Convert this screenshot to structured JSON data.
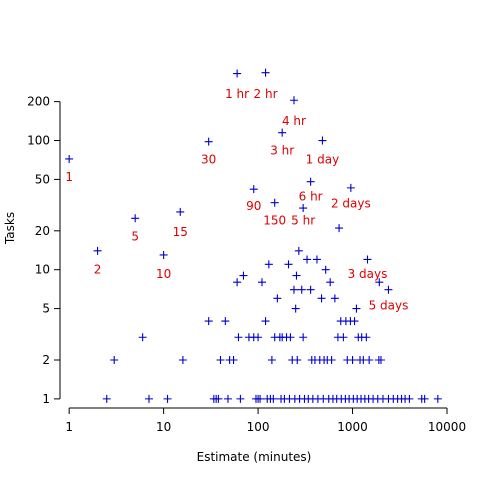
{
  "chart_data": {
    "type": "scatter",
    "title": "",
    "xlabel": "Estimate (minutes)",
    "ylabel": "Tasks",
    "x_scale": "log",
    "y_scale": "log",
    "xlim": [
      0.8,
      10000
    ],
    "ylim": [
      0.85,
      420
    ],
    "x_ticks": [
      1,
      10,
      100,
      1000,
      10000
    ],
    "y_ticks": [
      1,
      2,
      5,
      10,
      20,
      50,
      100,
      200
    ],
    "grid": false,
    "legend": "none",
    "marker": "plus",
    "point_color": "#0000cc",
    "annotation_color": "#e00000",
    "points": [
      {
        "x": 1,
        "y": 72
      },
      {
        "x": 2,
        "y": 14
      },
      {
        "x": 5,
        "y": 25
      },
      {
        "x": 10,
        "y": 13
      },
      {
        "x": 15,
        "y": 28
      },
      {
        "x": 30,
        "y": 98
      },
      {
        "x": 60,
        "y": 330
      },
      {
        "x": 90,
        "y": 42
      },
      {
        "x": 120,
        "y": 335
      },
      {
        "x": 150,
        "y": 33
      },
      {
        "x": 180,
        "y": 115
      },
      {
        "x": 240,
        "y": 205
      },
      {
        "x": 300,
        "y": 30
      },
      {
        "x": 360,
        "y": 48
      },
      {
        "x": 480,
        "y": 100
      },
      {
        "x": 960,
        "y": 43
      },
      {
        "x": 1440,
        "y": 12
      },
      {
        "x": 1920,
        "y": 8
      },
      {
        "x": 2400,
        "y": 7
      },
      {
        "x": 720,
        "y": 21
      },
      {
        "x": 3,
        "y": 2
      },
      {
        "x": 6,
        "y": 3
      },
      {
        "x": 16,
        "y": 2
      },
      {
        "x": 30,
        "y": 4
      },
      {
        "x": 40,
        "y": 2
      },
      {
        "x": 45,
        "y": 4
      },
      {
        "x": 50,
        "y": 2
      },
      {
        "x": 55,
        "y": 2
      },
      {
        "x": 60,
        "y": 8
      },
      {
        "x": 62,
        "y": 3
      },
      {
        "x": 70,
        "y": 9
      },
      {
        "x": 80,
        "y": 3
      },
      {
        "x": 90,
        "y": 3
      },
      {
        "x": 100,
        "y": 3
      },
      {
        "x": 110,
        "y": 8
      },
      {
        "x": 120,
        "y": 4
      },
      {
        "x": 130,
        "y": 11
      },
      {
        "x": 140,
        "y": 2
      },
      {
        "x": 150,
        "y": 3
      },
      {
        "x": 160,
        "y": 6
      },
      {
        "x": 170,
        "y": 3
      },
      {
        "x": 180,
        "y": 3
      },
      {
        "x": 200,
        "y": 3
      },
      {
        "x": 210,
        "y": 11
      },
      {
        "x": 220,
        "y": 3
      },
      {
        "x": 230,
        "y": 2
      },
      {
        "x": 240,
        "y": 7
      },
      {
        "x": 250,
        "y": 5
      },
      {
        "x": 255,
        "y": 9
      },
      {
        "x": 260,
        "y": 2
      },
      {
        "x": 270,
        "y": 14
      },
      {
        "x": 290,
        "y": 7
      },
      {
        "x": 300,
        "y": 3
      },
      {
        "x": 330,
        "y": 12
      },
      {
        "x": 360,
        "y": 7
      },
      {
        "x": 370,
        "y": 2
      },
      {
        "x": 400,
        "y": 2
      },
      {
        "x": 420,
        "y": 12
      },
      {
        "x": 450,
        "y": 2
      },
      {
        "x": 470,
        "y": 6
      },
      {
        "x": 500,
        "y": 2
      },
      {
        "x": 520,
        "y": 10
      },
      {
        "x": 540,
        "y": 2
      },
      {
        "x": 580,
        "y": 8
      },
      {
        "x": 600,
        "y": 2
      },
      {
        "x": 650,
        "y": 6
      },
      {
        "x": 700,
        "y": 3
      },
      {
        "x": 750,
        "y": 4
      },
      {
        "x": 800,
        "y": 3
      },
      {
        "x": 850,
        "y": 4
      },
      {
        "x": 880,
        "y": 2
      },
      {
        "x": 950,
        "y": 4
      },
      {
        "x": 1000,
        "y": 2
      },
      {
        "x": 1050,
        "y": 4
      },
      {
        "x": 1100,
        "y": 5
      },
      {
        "x": 1150,
        "y": 3
      },
      {
        "x": 1200,
        "y": 2
      },
      {
        "x": 1250,
        "y": 3
      },
      {
        "x": 1300,
        "y": 2
      },
      {
        "x": 1400,
        "y": 3
      },
      {
        "x": 1500,
        "y": 2
      },
      {
        "x": 1900,
        "y": 2
      },
      {
        "x": 2000,
        "y": 2
      },
      {
        "x": 2.5,
        "y": 1
      },
      {
        "x": 7,
        "y": 1
      },
      {
        "x": 11,
        "y": 1
      },
      {
        "x": 34,
        "y": 1
      },
      {
        "x": 36,
        "y": 1
      },
      {
        "x": 38,
        "y": 1
      },
      {
        "x": 48,
        "y": 1
      },
      {
        "x": 65,
        "y": 1
      },
      {
        "x": 95,
        "y": 1
      },
      {
        "x": 100,
        "y": 1
      },
      {
        "x": 105,
        "y": 1
      },
      {
        "x": 125,
        "y": 1
      },
      {
        "x": 135,
        "y": 1
      },
      {
        "x": 145,
        "y": 1
      },
      {
        "x": 175,
        "y": 1
      },
      {
        "x": 190,
        "y": 1
      },
      {
        "x": 215,
        "y": 1
      },
      {
        "x": 245,
        "y": 1
      },
      {
        "x": 275,
        "y": 1
      },
      {
        "x": 310,
        "y": 1
      },
      {
        "x": 340,
        "y": 1
      },
      {
        "x": 380,
        "y": 1
      },
      {
        "x": 430,
        "y": 1
      },
      {
        "x": 490,
        "y": 1
      },
      {
        "x": 560,
        "y": 1
      },
      {
        "x": 620,
        "y": 1
      },
      {
        "x": 680,
        "y": 1
      },
      {
        "x": 760,
        "y": 1
      },
      {
        "x": 840,
        "y": 1
      },
      {
        "x": 920,
        "y": 1
      },
      {
        "x": 1020,
        "y": 1
      },
      {
        "x": 1120,
        "y": 1
      },
      {
        "x": 1230,
        "y": 1
      },
      {
        "x": 1350,
        "y": 1
      },
      {
        "x": 1480,
        "y": 1
      },
      {
        "x": 1650,
        "y": 1
      },
      {
        "x": 1850,
        "y": 1
      },
      {
        "x": 2100,
        "y": 1
      },
      {
        "x": 2400,
        "y": 1
      },
      {
        "x": 2700,
        "y": 1
      },
      {
        "x": 3000,
        "y": 1
      },
      {
        "x": 3300,
        "y": 1
      },
      {
        "x": 3600,
        "y": 1
      },
      {
        "x": 4000,
        "y": 1
      },
      {
        "x": 5400,
        "y": 1
      },
      {
        "x": 5800,
        "y": 1
      },
      {
        "x": 8000,
        "y": 1
      }
    ],
    "annotations": [
      {
        "text": "1",
        "x": 1,
        "y": 52
      },
      {
        "text": "2",
        "x": 2,
        "y": 10
      },
      {
        "text": "5",
        "x": 5,
        "y": 18
      },
      {
        "text": "10",
        "x": 10,
        "y": 9.3
      },
      {
        "text": "15",
        "x": 15,
        "y": 19.5
      },
      {
        "text": "30",
        "x": 30,
        "y": 71
      },
      {
        "text": "1 hr",
        "x": 60,
        "y": 230
      },
      {
        "text": "2 hr",
        "x": 120,
        "y": 230
      },
      {
        "text": "90",
        "x": 90,
        "y": 31
      },
      {
        "text": "150",
        "x": 150,
        "y": 24
      },
      {
        "text": "3 hr",
        "x": 180,
        "y": 84
      },
      {
        "text": "4 hr",
        "x": 240,
        "y": 142
      },
      {
        "text": "5 hr",
        "x": 300,
        "y": 24
      },
      {
        "text": "6 hr",
        "x": 360,
        "y": 37
      },
      {
        "text": "1 day",
        "x": 480,
        "y": 71
      },
      {
        "text": "2 days",
        "x": 960,
        "y": 32.5
      },
      {
        "text": "3 days",
        "x": 1440,
        "y": 9.3
      },
      {
        "text": "5 days",
        "x": 2400,
        "y": 5.3
      }
    ]
  }
}
